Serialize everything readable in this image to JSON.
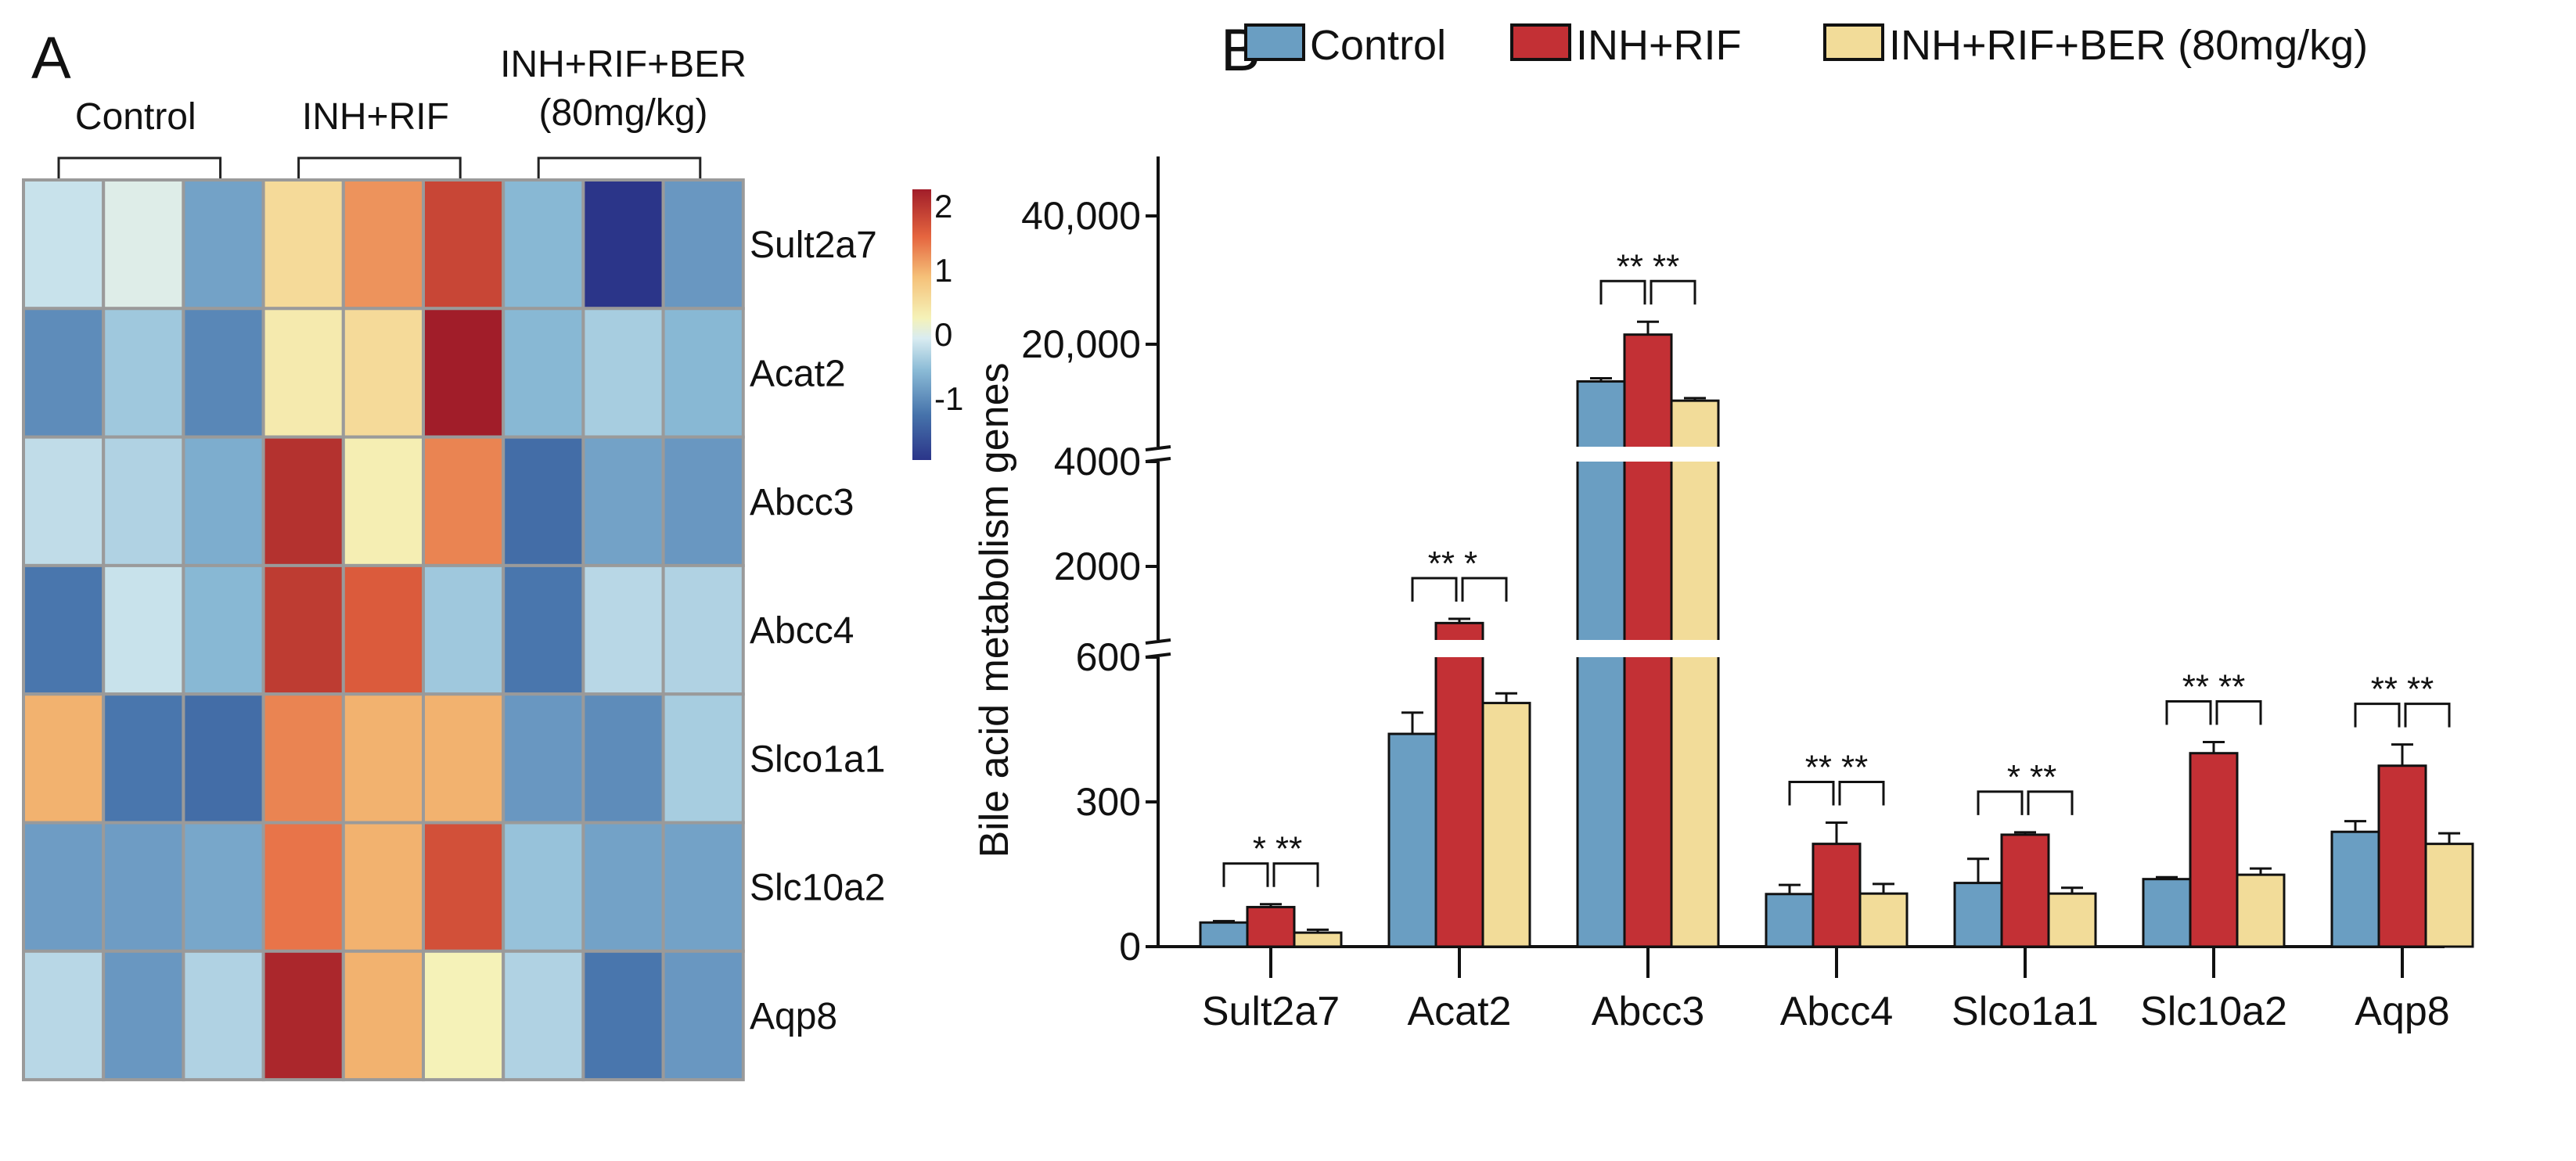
{
  "chart_data": [
    {
      "type": "heatmap",
      "panel_label": "A",
      "column_groups": [
        {
          "label": "Control",
          "label_line2": null
        },
        {
          "label": "INH+RIF",
          "label_line2": null
        },
        {
          "label": "INH+RIF+BER",
          "label_line2": "(80mg/kg)"
        }
      ],
      "replicates_per_group": 3,
      "rows": [
        "Sult2a7",
        "Acat2",
        "Abcc3",
        "Abcc4",
        "Slco1a1",
        "Slc10a2",
        "Aqp8"
      ],
      "values": [
        [
          -0.3,
          -0.15,
          -0.9,
          0.4,
          1.0,
          1.6,
          -0.7,
          -2.0,
          -1.0
        ],
        [
          -1.1,
          -0.55,
          -1.15,
          0.2,
          0.4,
          2.0,
          -0.7,
          -0.5,
          -0.7
        ],
        [
          -0.35,
          -0.45,
          -0.8,
          1.8,
          0.15,
          1.1,
          -1.4,
          -0.9,
          -1.0
        ],
        [
          -1.3,
          -0.3,
          -0.7,
          1.7,
          1.4,
          -0.55,
          -1.3,
          -0.4,
          -0.45
        ],
        [
          0.8,
          -1.3,
          -1.4,
          1.1,
          0.8,
          0.8,
          -1.0,
          -1.1,
          -0.5
        ],
        [
          -0.95,
          -0.95,
          -0.85,
          1.2,
          0.8,
          1.5,
          -0.6,
          -0.9,
          -0.9
        ],
        [
          -0.4,
          -1.0,
          -0.45,
          1.9,
          0.8,
          0.1,
          -0.45,
          -1.3,
          -1.0
        ]
      ],
      "colorbar": {
        "range": [
          -2,
          2
        ],
        "ticks": [
          "2",
          "1",
          "0",
          "-1"
        ],
        "tick_values": [
          2,
          1,
          0,
          -1
        ]
      },
      "colors": {
        "low": "#2b3589",
        "mid": "#f5f2b8",
        "high": "#a11d29"
      }
    },
    {
      "type": "bar",
      "panel_label": "B",
      "title": "",
      "xlabel": "",
      "ylabel": "Bile acid metabolism genes",
      "categories": [
        "Sult2a7",
        "Acat2",
        "Abcc3",
        "Abcc4",
        "Slco1a1",
        "Slc10a2",
        "Aqp8"
      ],
      "y_axis_breaks": [
        [
          600,
          600
        ],
        [
          4000,
          4000
        ]
      ],
      "y_ticks": [
        {
          "value": 0,
          "label": "0"
        },
        {
          "value": 300,
          "label": "300"
        },
        {
          "value": 600,
          "label": "600"
        },
        {
          "value": 2000,
          "label": "2000"
        },
        {
          "value": 4000,
          "label": "4000"
        },
        {
          "value": 20000,
          "label": "20,000"
        },
        {
          "value": 40000,
          "label": "40,000"
        }
      ],
      "legend_position": "top",
      "series": [
        {
          "name": "Control",
          "color": "#6a9ec2",
          "values": [
            50,
            441,
            14200,
            109,
            132,
            140,
            238
          ],
          "errors": [
            3,
            44,
            500,
            19,
            50,
            4,
            22
          ]
        },
        {
          "name": "INH+RIF",
          "color": "#c33035",
          "values": [
            82,
            920,
            21500,
            213,
            232,
            401,
            375
          ],
          "errors": [
            6,
            80,
            2000,
            44,
            5,
            23,
            44
          ]
        },
        {
          "name": "INH+RIF+BER (80mg/kg)",
          "color": "#f2dc99",
          "values": [
            29,
            505,
            11200,
            110,
            110,
            149,
            213
          ],
          "errors": [
            6,
            20,
            400,
            20,
            12,
            13,
            22
          ]
        }
      ],
      "significance": [
        [
          "*",
          "**"
        ],
        [
          "**",
          "*"
        ],
        [
          "**",
          "**"
        ],
        [
          "**",
          "**"
        ],
        [
          "*",
          "**"
        ],
        [
          "**",
          "**"
        ],
        [
          "**",
          "**"
        ]
      ]
    }
  ]
}
